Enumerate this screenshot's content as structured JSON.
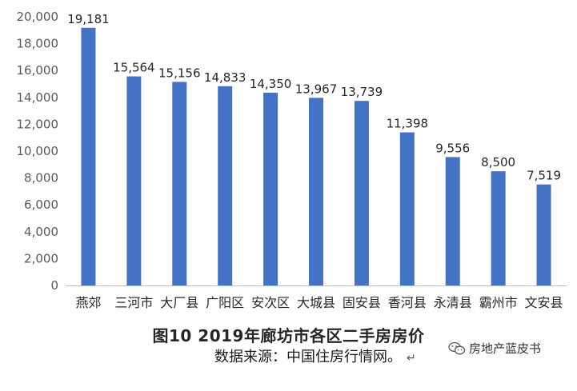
{
  "chart_data": {
    "type": "bar",
    "categories": [
      "燕郊",
      "三河市",
      "大厂县",
      "广阳区",
      "安次区",
      "大城县",
      "固安县",
      "香河县",
      "永清县",
      "霸州市",
      "文安县"
    ],
    "values": [
      19181,
      15564,
      15156,
      14833,
      14350,
      13967,
      13739,
      11398,
      9556,
      8500,
      7519
    ],
    "value_labels": [
      "19,181",
      "15,564",
      "15,156",
      "14,833",
      "14,350",
      "13,967",
      "13,739",
      "11,398",
      "9,556",
      "8,500",
      "7,519"
    ],
    "yticks": [
      "0",
      "2,000",
      "4,000",
      "6,000",
      "8,000",
      "10,000",
      "12,000",
      "14,000",
      "16,000",
      "18,000",
      "20,000"
    ],
    "ylim": [
      0,
      20000
    ],
    "grid": false,
    "bar_color": "#4472C4"
  },
  "caption": "图10  2019年廊坊市各区二手房房价",
  "source": "数据来源：中国住房行情网。",
  "return_mark": "↵",
  "watermark": {
    "text": "房地产蓝皮书",
    "icon": "wechat-icon"
  }
}
